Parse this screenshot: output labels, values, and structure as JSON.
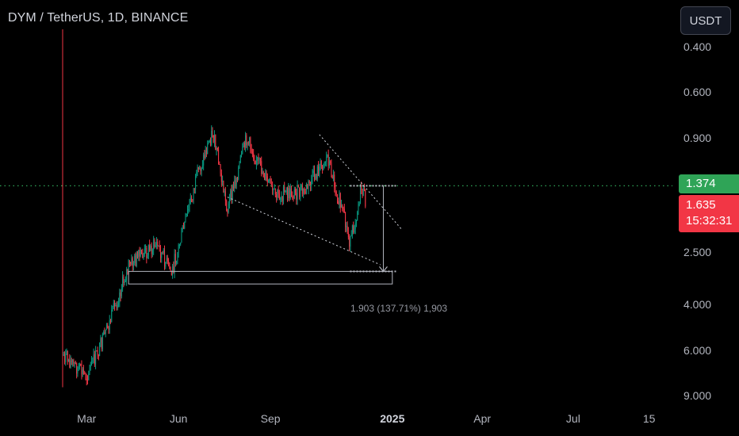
{
  "header": {
    "symbol_title": "DYM / TetherUS, 1D, BINANCE",
    "currency_button": "USDT"
  },
  "price_axis": {
    "scale": "inverted-log",
    "ticks": [
      "0.400",
      "0.600",
      "0.900",
      "1.374",
      "1.635",
      "2.500",
      "4.000",
      "6.000",
      "9.000"
    ],
    "tick_list": [
      {
        "label": "0.400"
      },
      {
        "label": "0.600"
      },
      {
        "label": "0.900"
      },
      {
        "label": "2.500"
      },
      {
        "label": "4.000"
      },
      {
        "label": "6.000"
      },
      {
        "label": "9.000"
      }
    ]
  },
  "price_tags": {
    "highlight_level": "1.374",
    "last_price": "1.635",
    "countdown": "15:32:31",
    "highlight_color": "#2fa457",
    "last_color": "#f23645"
  },
  "time_axis": {
    "ticks": [
      {
        "label": "Mar",
        "bold": false
      },
      {
        "label": "Jun",
        "bold": false
      },
      {
        "label": "Sep",
        "bold": false
      },
      {
        "label": "2025",
        "bold": true
      },
      {
        "label": "Apr",
        "bold": false
      },
      {
        "label": "Jul",
        "bold": false
      },
      {
        "label": "15",
        "bold": false
      }
    ]
  },
  "measure": {
    "label": "1.903 (137.71%) 1,903"
  },
  "chart_data": {
    "type": "candlestick",
    "y_axis": "inverted log price (USDT)",
    "ylim": [
      0.34,
      10.0
    ],
    "up_color": "#089981",
    "down_color": "#f23645",
    "segments": [
      {
        "start": "2024-02-06",
        "end": "2024-03-01",
        "from": 6.2,
        "to": 7.5
      },
      {
        "start": "2024-03-01",
        "end": "2024-03-20",
        "from": 7.5,
        "to": 5.2
      },
      {
        "start": "2024-03-20",
        "end": "2024-04-12",
        "from": 5.2,
        "to": 2.8
      },
      {
        "start": "2024-04-12",
        "end": "2024-05-10",
        "from": 2.8,
        "to": 2.3
      },
      {
        "start": "2024-05-10",
        "end": "2024-05-25",
        "from": 2.3,
        "to": 3.0
      },
      {
        "start": "2024-05-25",
        "end": "2024-06-20",
        "from": 3.0,
        "to": 1.25
      },
      {
        "start": "2024-06-20",
        "end": "2024-07-05",
        "from": 1.25,
        "to": 0.85
      },
      {
        "start": "2024-07-05",
        "end": "2024-07-20",
        "from": 0.85,
        "to": 1.7
      },
      {
        "start": "2024-07-20",
        "end": "2024-08-08",
        "from": 1.7,
        "to": 0.9
      },
      {
        "start": "2024-08-08",
        "end": "2024-09-05",
        "from": 0.9,
        "to": 1.5
      },
      {
        "start": "2024-09-05",
        "end": "2024-10-05",
        "from": 1.5,
        "to": 1.45
      },
      {
        "start": "2024-10-05",
        "end": "2024-10-28",
        "from": 1.45,
        "to": 1.05
      },
      {
        "start": "2024-10-28",
        "end": "2024-11-20",
        "from": 1.05,
        "to": 2.3
      },
      {
        "start": "2024-11-20",
        "end": "2024-12-01",
        "from": 2.3,
        "to": 1.4
      },
      {
        "start": "2024-12-01",
        "end": "2024-12-06",
        "from": 1.4,
        "to": 1.6
      }
    ],
    "first_candle_wick": [
      0.34,
      8.3
    ],
    "annotations": {
      "dotted_price_line": 1.374,
      "trendline_upper": [
        {
          "date": "2024-10-20",
          "price": 0.87
        },
        {
          "date": "2025-01-10",
          "price": 2.02
        }
      ],
      "trendline_lower": [
        {
          "date": "2024-07-20",
          "price": 1.52
        },
        {
          "date": "2024-12-20",
          "price": 2.78
        }
      ],
      "range_box": {
        "from": "2024-04-12",
        "to": "2025-01-01",
        "top": 2.95,
        "bottom": 3.3
      },
      "measure_top": {
        "date": "2024-12-23",
        "price": 1.374
      },
      "measure_bottom": {
        "date": "2024-12-23",
        "price": 2.95
      }
    }
  }
}
